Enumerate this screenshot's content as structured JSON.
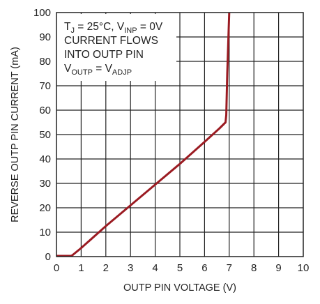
{
  "chart_data": {
    "type": "line",
    "xlabel": "OUTP PIN VOLTAGE (V)",
    "ylabel": "REVERSE OUTP PIN CURRENT (mA)",
    "xlim": [
      0,
      10
    ],
    "ylim": [
      0,
      100
    ],
    "x_ticks": [
      "0",
      "1",
      "2",
      "3",
      "4",
      "5",
      "6",
      "7",
      "8",
      "9",
      "10"
    ],
    "y_ticks": [
      "0",
      "10",
      "20",
      "30",
      "40",
      "50",
      "60",
      "70",
      "80",
      "90",
      "100"
    ],
    "grid": true,
    "series": [
      {
        "color": "#9b1b22",
        "x": [
          0,
          0.6,
          0.65,
          1.0,
          2.0,
          3.0,
          4.0,
          5.0,
          6.0,
          6.6,
          6.85,
          6.88,
          6.92,
          7.0
        ],
        "y": [
          0.3,
          0.3,
          0.6,
          3.5,
          12.5,
          21.0,
          29.5,
          38.0,
          47.0,
          52.5,
          55.0,
          58.0,
          75.0,
          100
        ]
      }
    ],
    "annotation": {
      "line1_a": "T",
      "line1_a_sub": "J",
      "line1_b": " = 25°C, V",
      "line1_b_sub": "INP",
      "line1_c": " = 0V",
      "line2": "CURRENT FLOWS",
      "line3": "INTO OUTP PIN",
      "line4_a": "V",
      "line4_a_sub": "OUTP",
      "line4_b": " = V",
      "line4_b_sub": "ADJP"
    }
  }
}
